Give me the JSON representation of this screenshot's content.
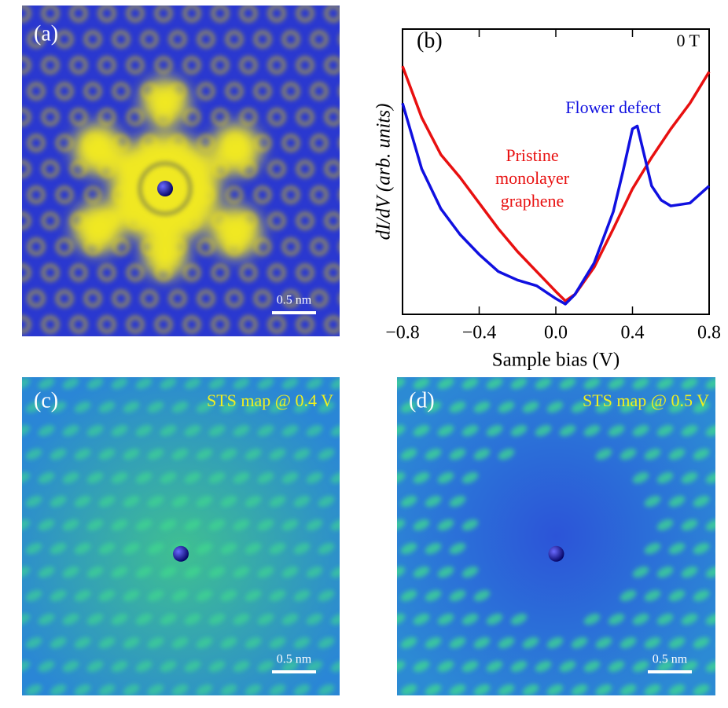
{
  "panels": [
    {
      "label": "(a)",
      "scale_bar": "0.5 nm"
    },
    {
      "label": "(c)",
      "scale_bar": "0.5 nm",
      "caption": "STS map @ 0.4 V"
    },
    {
      "label": "(d)",
      "scale_bar": "0.5 nm",
      "caption": "STS map @ 0.5 V"
    }
  ],
  "chart_data": {
    "type": "line",
    "label": "(b)",
    "annotation": "0 T",
    "xlabel": "Sample bias (V)",
    "ylabel": "dI/dV (arb. units)",
    "xlim": [
      -0.8,
      0.8
    ],
    "ylim": [
      0,
      1
    ],
    "xticks": [
      {
        "value": -0.8,
        "label": "−0.8"
      },
      {
        "value": -0.4,
        "label": "−0.4"
      },
      {
        "value": 0,
        "label": "0.0"
      },
      0.4,
      0.8
    ],
    "series": [
      {
        "name": "Pristine monolayer graphene",
        "color": "#e81010",
        "x": [
          -0.8,
          -0.7,
          -0.6,
          -0.5,
          -0.4,
          -0.3,
          -0.2,
          -0.1,
          0,
          0.05,
          0.1,
          0.2,
          0.3,
          0.4,
          0.5,
          0.6,
          0.7,
          0.8
        ],
        "values": [
          0.87,
          0.69,
          0.56,
          0.48,
          0.39,
          0.3,
          0.22,
          0.15,
          0.08,
          0.047,
          0.07,
          0.165,
          0.3,
          0.44,
          0.55,
          0.65,
          0.74,
          0.85
        ]
      },
      {
        "name": "Flower defect",
        "color": "#1010e0",
        "x": [
          -0.8,
          -0.7,
          -0.6,
          -0.5,
          -0.4,
          -0.3,
          -0.2,
          -0.1,
          0,
          0.05,
          0.1,
          0.2,
          0.3,
          0.35,
          0.4,
          0.425,
          0.45,
          0.5,
          0.55,
          0.6,
          0.7,
          0.8
        ],
        "values": [
          0.74,
          0.51,
          0.37,
          0.28,
          0.21,
          0.15,
          0.12,
          0.1,
          0.055,
          0.036,
          0.07,
          0.18,
          0.36,
          0.5,
          0.65,
          0.66,
          0.59,
          0.45,
          0.4,
          0.38,
          0.39,
          0.45
        ]
      }
    ]
  }
}
